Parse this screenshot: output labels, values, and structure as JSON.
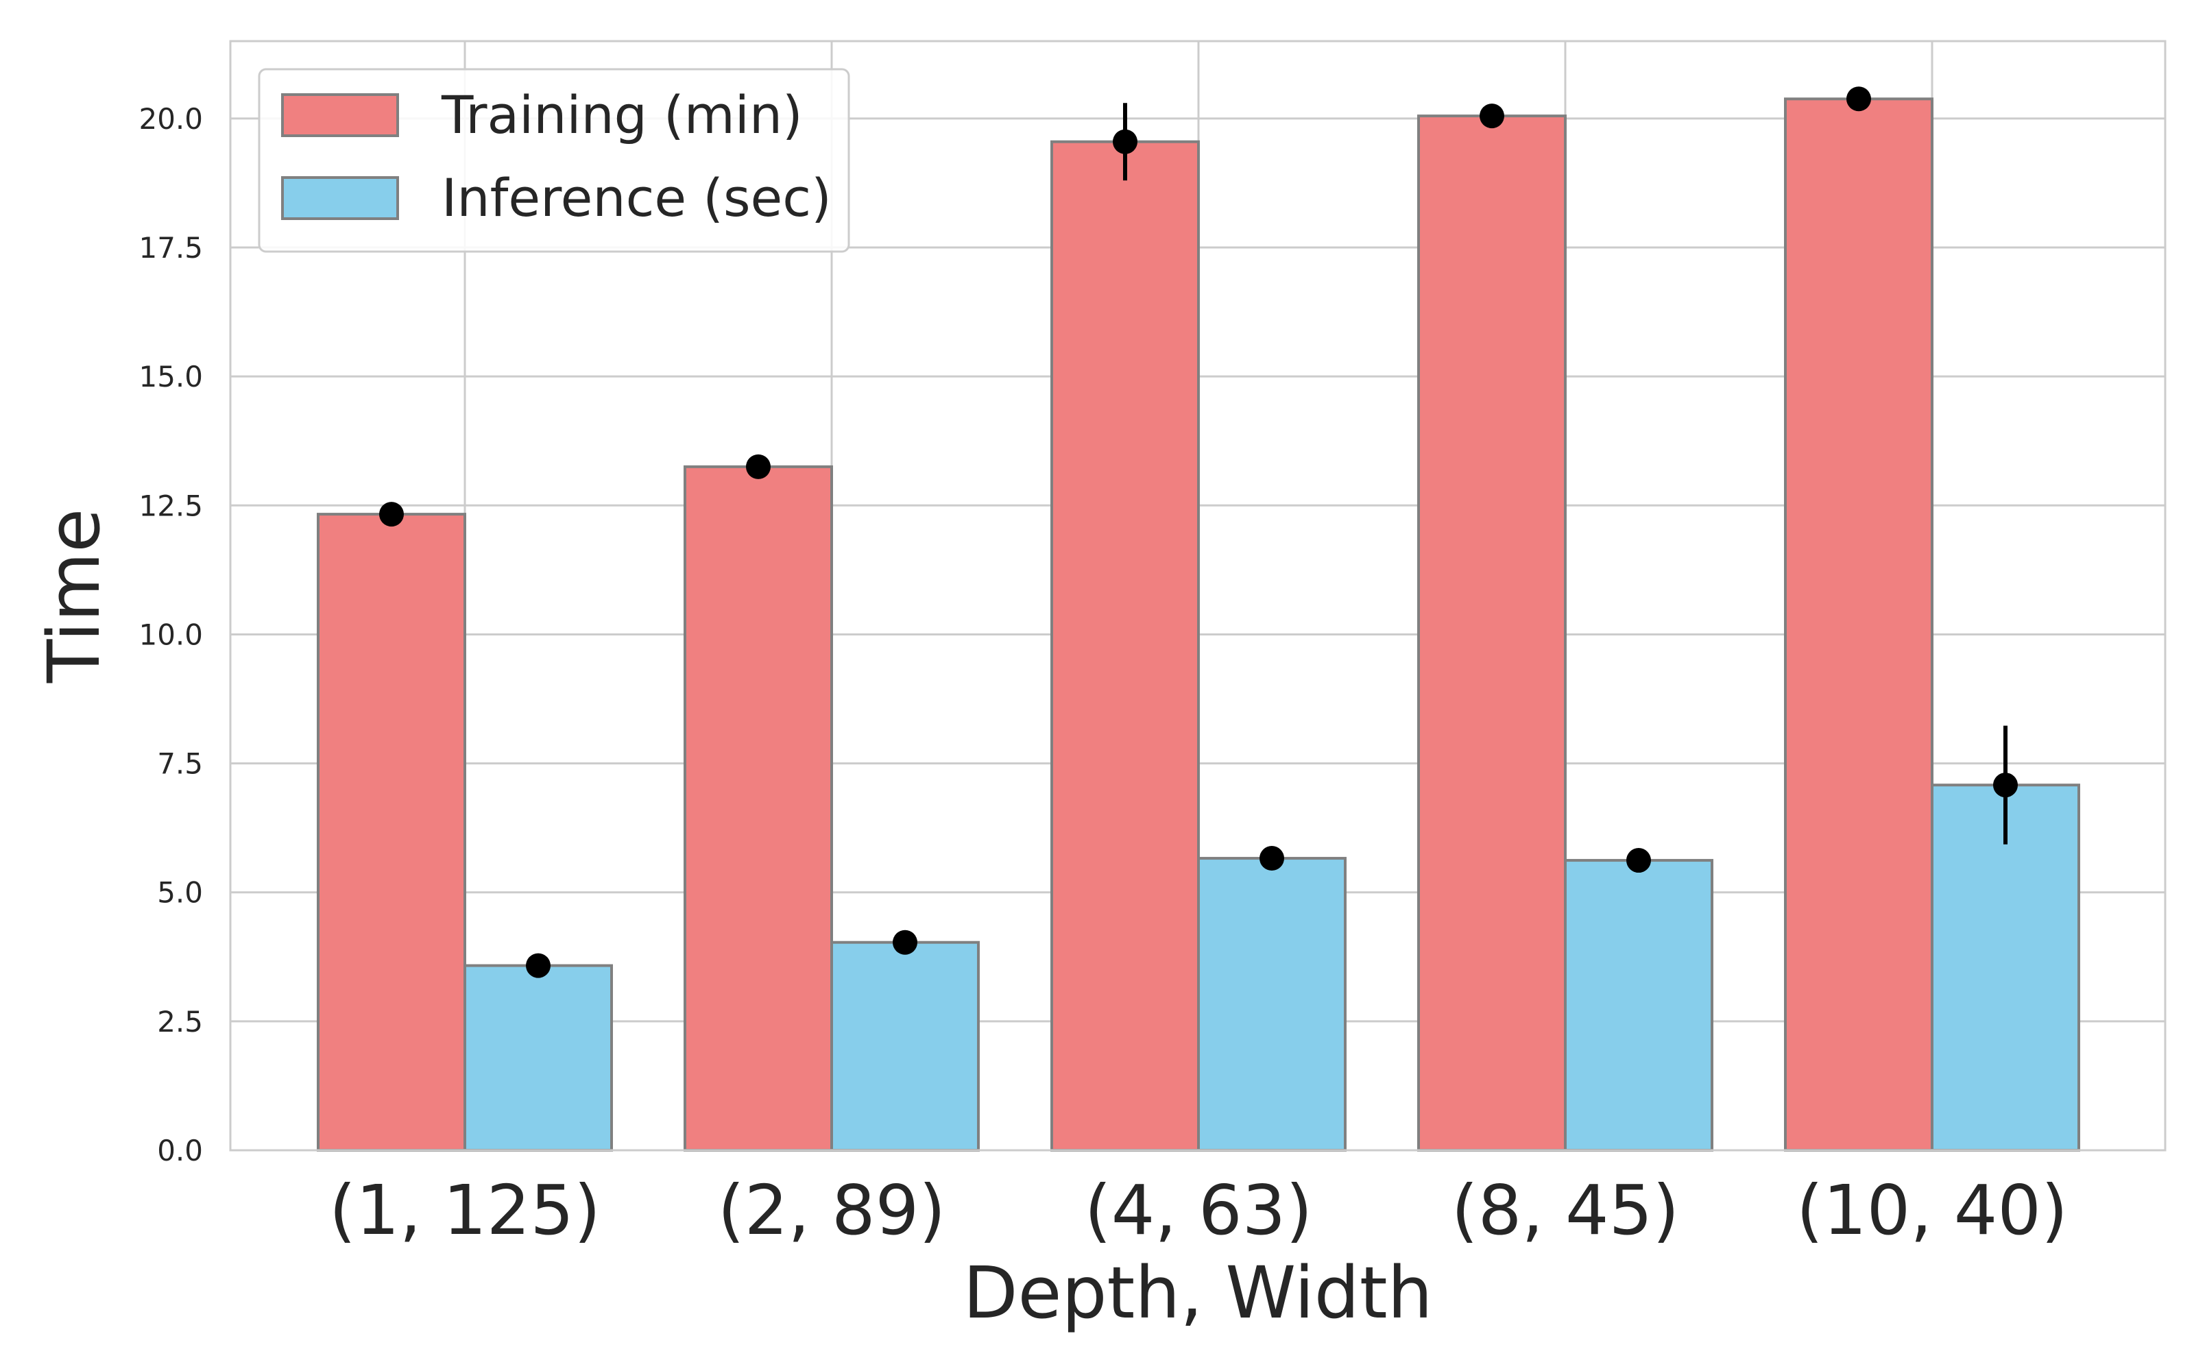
{
  "chart_data": {
    "type": "bar",
    "title": "",
    "xlabel": "Depth, Width",
    "ylabel": "Time",
    "categories": [
      "(1, 125)",
      "(2, 89)",
      "(4, 63)",
      "(8, 45)",
      "(10, 40)"
    ],
    "series": [
      {
        "name": "Training (min)",
        "color": "#F08080",
        "values": [
          12.33,
          13.25,
          19.55,
          20.05,
          20.38
        ],
        "errors": [
          0.0,
          0.0,
          0.75,
          0.0,
          0.0
        ]
      },
      {
        "name": "Inference (sec)",
        "color": "#87CEEB",
        "values": [
          3.58,
          4.03,
          5.66,
          5.62,
          7.08
        ],
        "errors": [
          0.0,
          0.0,
          0.0,
          0.0,
          1.15
        ]
      }
    ],
    "ylim": [
      0,
      21.5
    ],
    "yticks": [
      "0.0",
      "2.5",
      "5.0",
      "7.5",
      "10.0",
      "12.5",
      "15.0",
      "17.5",
      "20.0"
    ],
    "grid": true,
    "legend_position": "top-left",
    "edge_color": "#808080",
    "grid_color": "#CCCCCC",
    "text_color": "#262626",
    "marker_color": "#000000"
  }
}
